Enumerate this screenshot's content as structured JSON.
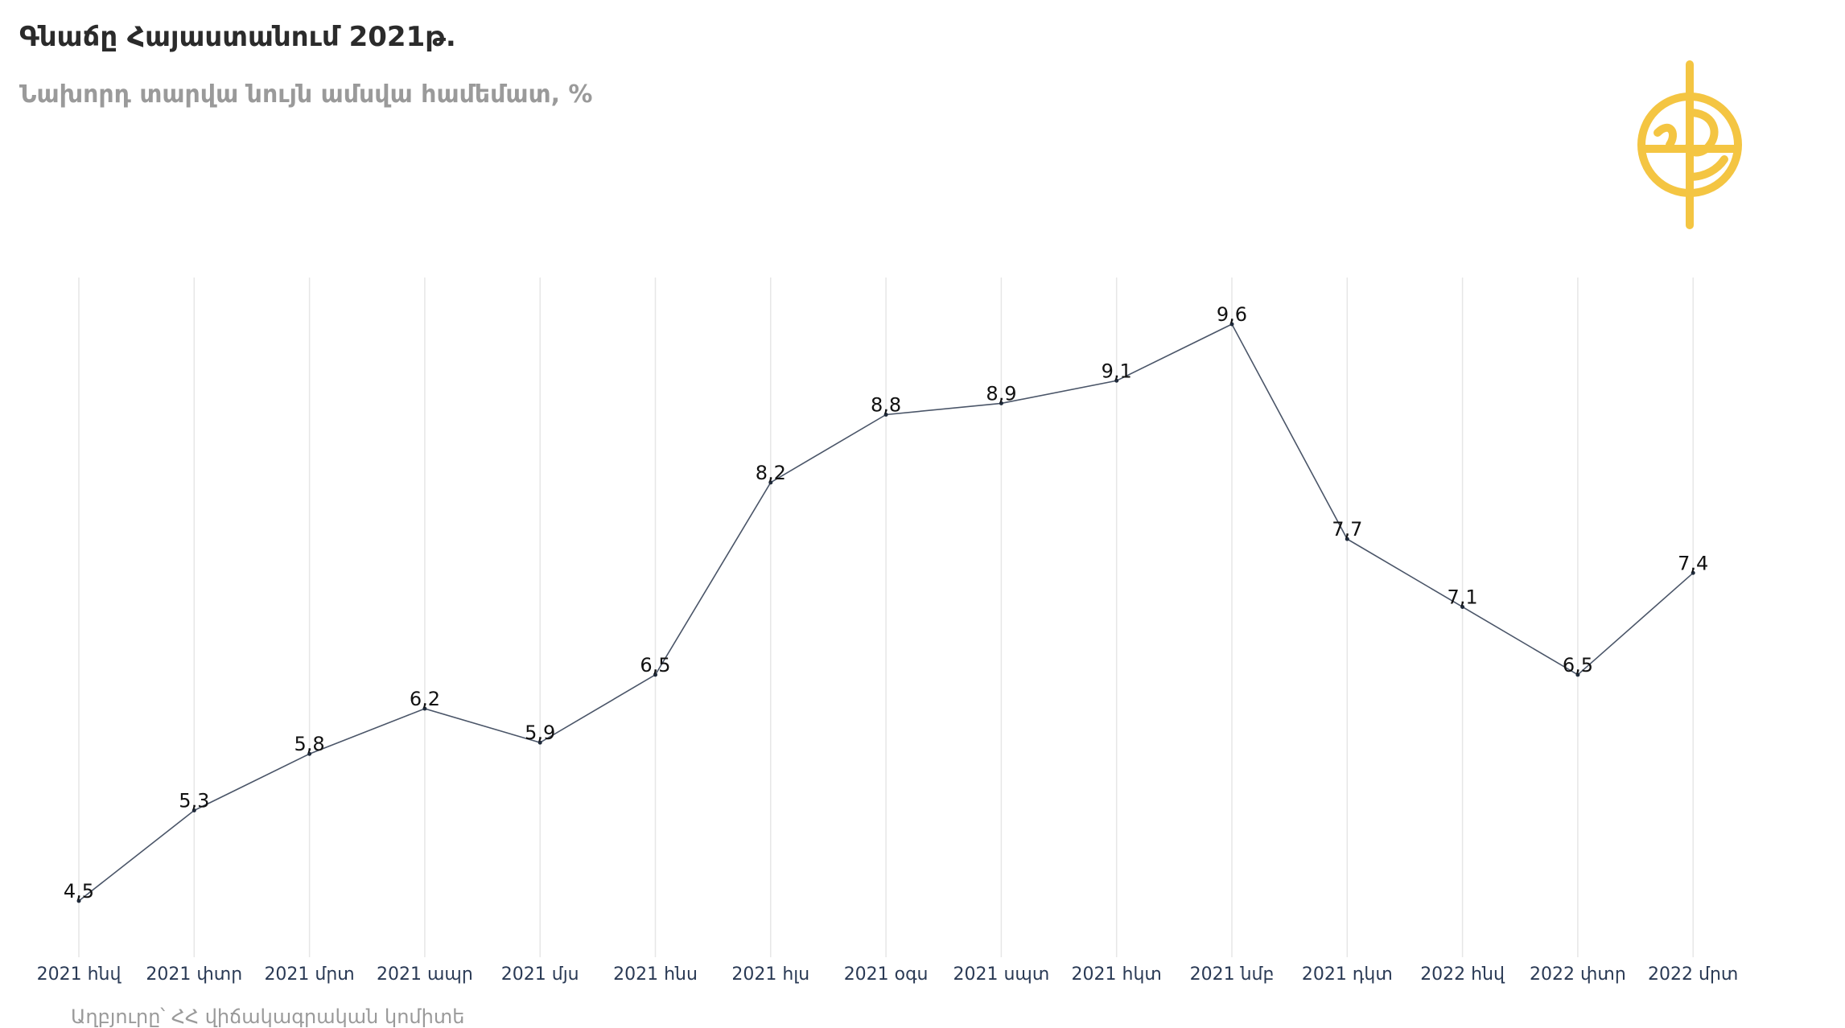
{
  "header": {
    "title": "Գնաճը Հայաստանում  2021թ.",
    "subtitle": "Նախորդ տարվա նույն ամսվա համեմատ, %"
  },
  "footer": {
    "source": "Աղբյուրը՝ ՀՀ վիճակագրական կոմիտե"
  },
  "logo": {
    "icon": "globe-logo-icon",
    "color": "#f4c542"
  },
  "colors": {
    "line": "#4a5568",
    "gridline": "#e6e6e6",
    "tick_text": "#2a3a55",
    "data_label": "#111111"
  },
  "chart_data": {
    "type": "line",
    "title": "Գնաճը Հայաստանում  2021թ.",
    "subtitle": "Նախորդ տարվա նույն ամսվա համեմատ, %",
    "xlabel": "",
    "ylabel": "",
    "grid": "vertical",
    "legend": "none",
    "categories": [
      "2021 հնվ",
      "2021 փտր",
      "2021 մրտ",
      "2021 ապր",
      "2021 մյս",
      "2021 հնս",
      "2021 հլս",
      "2021 օգս",
      "2021 սպտ",
      "2021 հկտ",
      "2021 նմբ",
      "2021 դկտ",
      "2022 հնվ",
      "2022 փտր",
      "2022 մրտ"
    ],
    "series": [
      {
        "values": [
          4.5,
          5.3,
          5.8,
          6.2,
          5.9,
          6.5,
          8.2,
          8.8,
          8.9,
          9.1,
          9.6,
          7.7,
          7.1,
          6.5,
          7.4
        ],
        "labels": [
          "4,5",
          "5,3",
          "5,8",
          "6,2",
          "5,9",
          "6,5",
          "8,2",
          "8,8",
          "8,9",
          "9,1",
          "9,6",
          "7,7",
          "7,1",
          "6,5",
          "7,4"
        ]
      }
    ]
  }
}
